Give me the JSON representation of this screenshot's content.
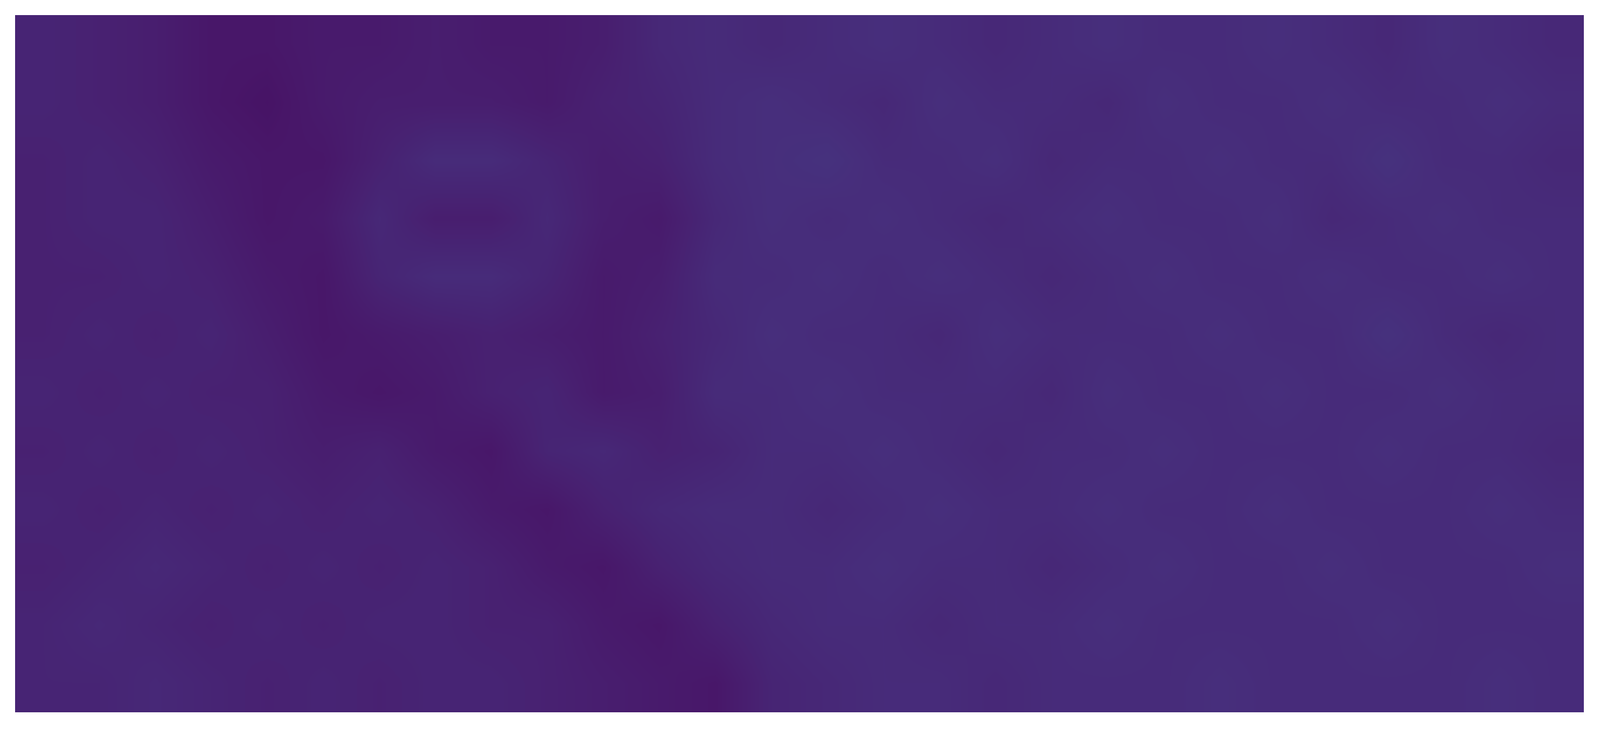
{
  "chart_data": {
    "type": "heatmap",
    "color": "viridis",
    "tick_labels": false,
    "grid": false,
    "zlim": [
      0,
      1
    ],
    "cells": [
      [
        0.1,
        0.09,
        0.08,
        0.06,
        0.06,
        0.07,
        0.07,
        0.08,
        0.07,
        0.07,
        0.08,
        0.11,
        0.12,
        0.11,
        0.12,
        0.13,
        0.12,
        0.11,
        0.12,
        0.13,
        0.12,
        0.12,
        0.13,
        0.12,
        0.11,
        0.13,
        0.12,
        0.11
      ],
      [
        0.1,
        0.09,
        0.08,
        0.06,
        0.05,
        0.07,
        0.08,
        0.08,
        0.08,
        0.07,
        0.09,
        0.1,
        0.12,
        0.13,
        0.12,
        0.11,
        0.13,
        0.12,
        0.12,
        0.11,
        0.13,
        0.12,
        0.12,
        0.13,
        0.12,
        0.12,
        0.13,
        0.12
      ],
      [
        0.09,
        0.1,
        0.09,
        0.07,
        0.06,
        0.06,
        0.09,
        0.12,
        0.12,
        0.1,
        0.08,
        0.09,
        0.12,
        0.13,
        0.14,
        0.12,
        0.12,
        0.13,
        0.11,
        0.12,
        0.12,
        0.13,
        0.12,
        0.12,
        0.14,
        0.12,
        0.12,
        0.11
      ],
      [
        0.09,
        0.1,
        0.1,
        0.08,
        0.06,
        0.07,
        0.11,
        0.08,
        0.08,
        0.11,
        0.08,
        0.07,
        0.11,
        0.13,
        0.12,
        0.13,
        0.12,
        0.11,
        0.12,
        0.13,
        0.12,
        0.12,
        0.13,
        0.11,
        0.12,
        0.13,
        0.12,
        0.12
      ],
      [
        0.09,
        0.09,
        0.1,
        0.09,
        0.07,
        0.06,
        0.1,
        0.12,
        0.12,
        0.1,
        0.07,
        0.08,
        0.12,
        0.12,
        0.13,
        0.12,
        0.13,
        0.12,
        0.11,
        0.12,
        0.13,
        0.12,
        0.12,
        0.13,
        0.12,
        0.12,
        0.13,
        0.12
      ],
      [
        0.09,
        0.1,
        0.09,
        0.1,
        0.08,
        0.06,
        0.07,
        0.08,
        0.09,
        0.08,
        0.07,
        0.09,
        0.11,
        0.13,
        0.12,
        0.12,
        0.11,
        0.13,
        0.12,
        0.12,
        0.12,
        0.13,
        0.12,
        0.12,
        0.14,
        0.12,
        0.11,
        0.12
      ],
      [
        0.1,
        0.09,
        0.1,
        0.09,
        0.09,
        0.07,
        0.06,
        0.07,
        0.09,
        0.1,
        0.07,
        0.08,
        0.12,
        0.12,
        0.13,
        0.12,
        0.12,
        0.12,
        0.11,
        0.13,
        0.12,
        0.12,
        0.13,
        0.12,
        0.12,
        0.13,
        0.12,
        0.12
      ],
      [
        0.09,
        0.1,
        0.09,
        0.1,
        0.09,
        0.08,
        0.09,
        0.07,
        0.06,
        0.1,
        0.11,
        0.09,
        0.1,
        0.12,
        0.12,
        0.13,
        0.12,
        0.11,
        0.12,
        0.12,
        0.13,
        0.12,
        0.12,
        0.12,
        0.13,
        0.12,
        0.12,
        0.11
      ],
      [
        0.1,
        0.09,
        0.1,
        0.09,
        0.1,
        0.09,
        0.1,
        0.09,
        0.07,
        0.06,
        0.09,
        0.11,
        0.12,
        0.12,
        0.11,
        0.12,
        0.13,
        0.12,
        0.12,
        0.13,
        0.12,
        0.12,
        0.13,
        0.12,
        0.12,
        0.12,
        0.13,
        0.12
      ],
      [
        0.09,
        0.1,
        0.11,
        0.1,
        0.09,
        0.1,
        0.09,
        0.1,
        0.09,
        0.07,
        0.06,
        0.09,
        0.11,
        0.12,
        0.12,
        0.13,
        0.12,
        0.12,
        0.11,
        0.12,
        0.13,
        0.12,
        0.12,
        0.13,
        0.12,
        0.12,
        0.12,
        0.13
      ],
      [
        0.1,
        0.11,
        0.1,
        0.09,
        0.1,
        0.09,
        0.1,
        0.1,
        0.09,
        0.09,
        0.07,
        0.06,
        0.09,
        0.11,
        0.12,
        0.12,
        0.11,
        0.12,
        0.12,
        0.13,
        0.12,
        0.12,
        0.12,
        0.12,
        0.13,
        0.12,
        0.12,
        0.12
      ],
      [
        0.1,
        0.1,
        0.11,
        0.1,
        0.09,
        0.1,
        0.09,
        0.1,
        0.1,
        0.09,
        0.08,
        0.07,
        0.06,
        0.1,
        0.11,
        0.12,
        0.12,
        0.11,
        0.12,
        0.12,
        0.12,
        0.13,
        0.12,
        0.12,
        0.12,
        0.12,
        0.13,
        0.12
      ]
    ]
  }
}
